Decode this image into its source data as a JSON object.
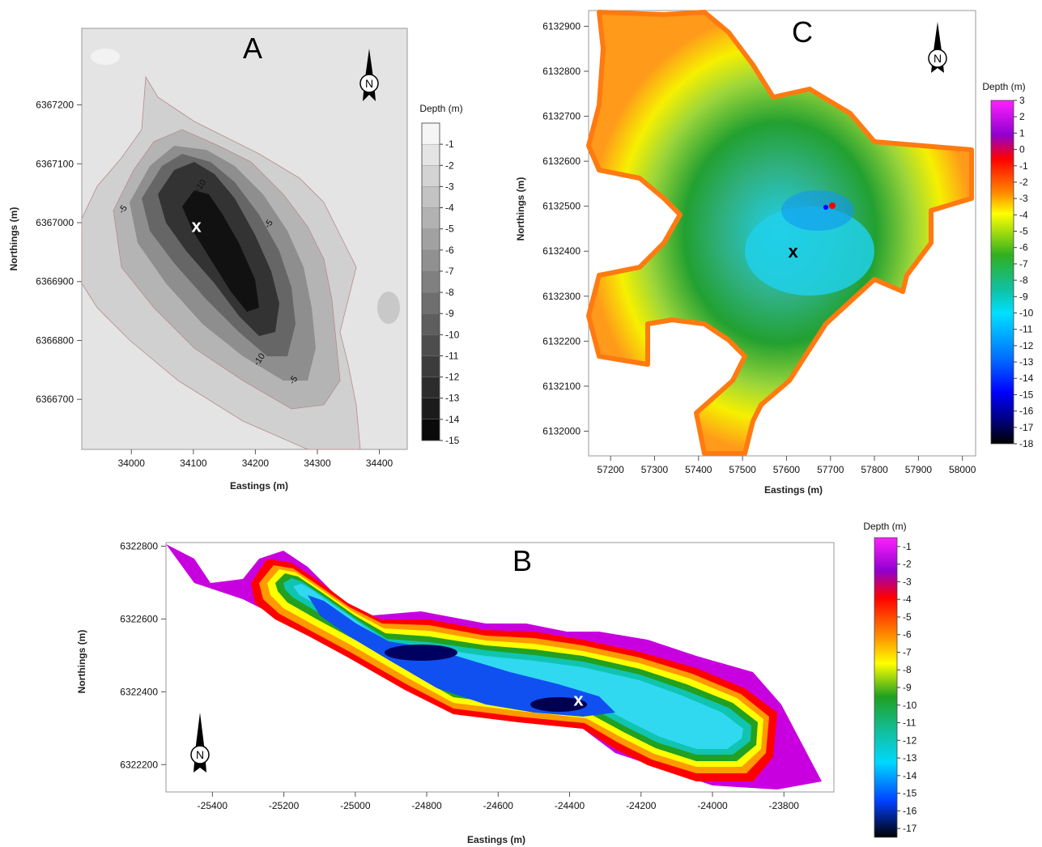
{
  "chart_data": [
    {
      "type": "heatmap",
      "panel_label": "A",
      "xlabel": "Eastings (m)",
      "ylabel": "Northings (m)",
      "x_ticks": [
        34000,
        34100,
        34200,
        34300,
        34400
      ],
      "y_ticks": [
        6366700,
        6366800,
        6366900,
        6367000,
        6367100,
        6367200
      ],
      "xlim": [
        33920,
        34445
      ],
      "ylim": [
        6366615,
        6367330
      ],
      "colorbar": {
        "title": "Depth (m)",
        "ticks": [
          -1,
          -2,
          -3,
          -4,
          -5,
          -6,
          -7,
          -8,
          -9,
          -10,
          -11,
          -12,
          -13,
          -14,
          -15
        ],
        "range": [
          -15,
          0
        ],
        "colormap": "grayscale"
      },
      "contour_labels": [
        {
          "text": "-5",
          "x": 33990,
          "y": 6367020
        },
        {
          "text": "-10",
          "x": 34115,
          "y": 6367060
        },
        {
          "text": "-5",
          "x": 34225,
          "y": 6366995
        },
        {
          "text": "-10",
          "x": 34210,
          "y": 6366765
        },
        {
          "text": "-5",
          "x": 34265,
          "y": 6366730
        }
      ],
      "marker": {
        "text": "x",
        "x": 34105,
        "y": 6366995
      },
      "north_arrow": "north-arrow-icon"
    },
    {
      "type": "heatmap",
      "panel_label": "C",
      "xlabel": "Eastings (m)",
      "ylabel": "Northings (m)",
      "x_ticks": [
        57200,
        57300,
        57400,
        57500,
        57600,
        57700,
        57800,
        57900,
        58000
      ],
      "y_ticks": [
        6132000,
        6132100,
        6132200,
        6132300,
        6132400,
        6132500,
        6132600,
        6132700,
        6132800,
        6132900
      ],
      "xlim": [
        57150,
        58030
      ],
      "ylim": [
        6131945,
        6132935
      ],
      "colorbar": {
        "title": "Depth (m)",
        "ticks": [
          3,
          2,
          1,
          0,
          -1,
          -2,
          -3,
          -4,
          -5,
          -6,
          -7,
          -8,
          -9,
          -10,
          -11,
          -12,
          -13,
          -14,
          -15,
          -16,
          -17,
          -18
        ],
        "range": [
          -18,
          3
        ],
        "colormap": "rainbow"
      },
      "marker": {
        "text": "x",
        "x": 57615,
        "y": 6132400
      },
      "north_arrow": "north-arrow-icon"
    },
    {
      "type": "heatmap",
      "panel_label": "B",
      "xlabel": "Eastings (m)",
      "ylabel": "Northings (m)",
      "x_ticks": [
        -25400,
        -25200,
        -25000,
        -24800,
        -24600,
        -24400,
        -24200,
        -24000,
        -23800
      ],
      "y_ticks": [
        6322200,
        6322400,
        6322600,
        6322800
      ],
      "xlim": [
        -25530,
        -23660
      ],
      "ylim": [
        6322125,
        6322810
      ],
      "colorbar": {
        "title": "Depth (m)",
        "ticks": [
          -1,
          -2,
          -3,
          -4,
          -5,
          -6,
          -7,
          -8,
          -9,
          -10,
          -11,
          -12,
          -13,
          -14,
          -15,
          -16,
          -17
        ],
        "range": [
          -17.5,
          -0.5
        ],
        "colormap": "rainbow"
      },
      "marker": {
        "text": "x",
        "x": -24375,
        "y": 6322380
      },
      "north_arrow": "north-arrow-icon"
    }
  ],
  "colors": {
    "rainbow": [
      "#000000",
      "#0000ff",
      "#00ccff",
      "#22bb55",
      "#ffff00",
      "#ff8800",
      "#ff0000",
      "#aa00cc",
      "#ff00ff"
    ],
    "gray_dark": "#111111",
    "gray_light": "#e4e4e4"
  },
  "north_symbol": "N"
}
